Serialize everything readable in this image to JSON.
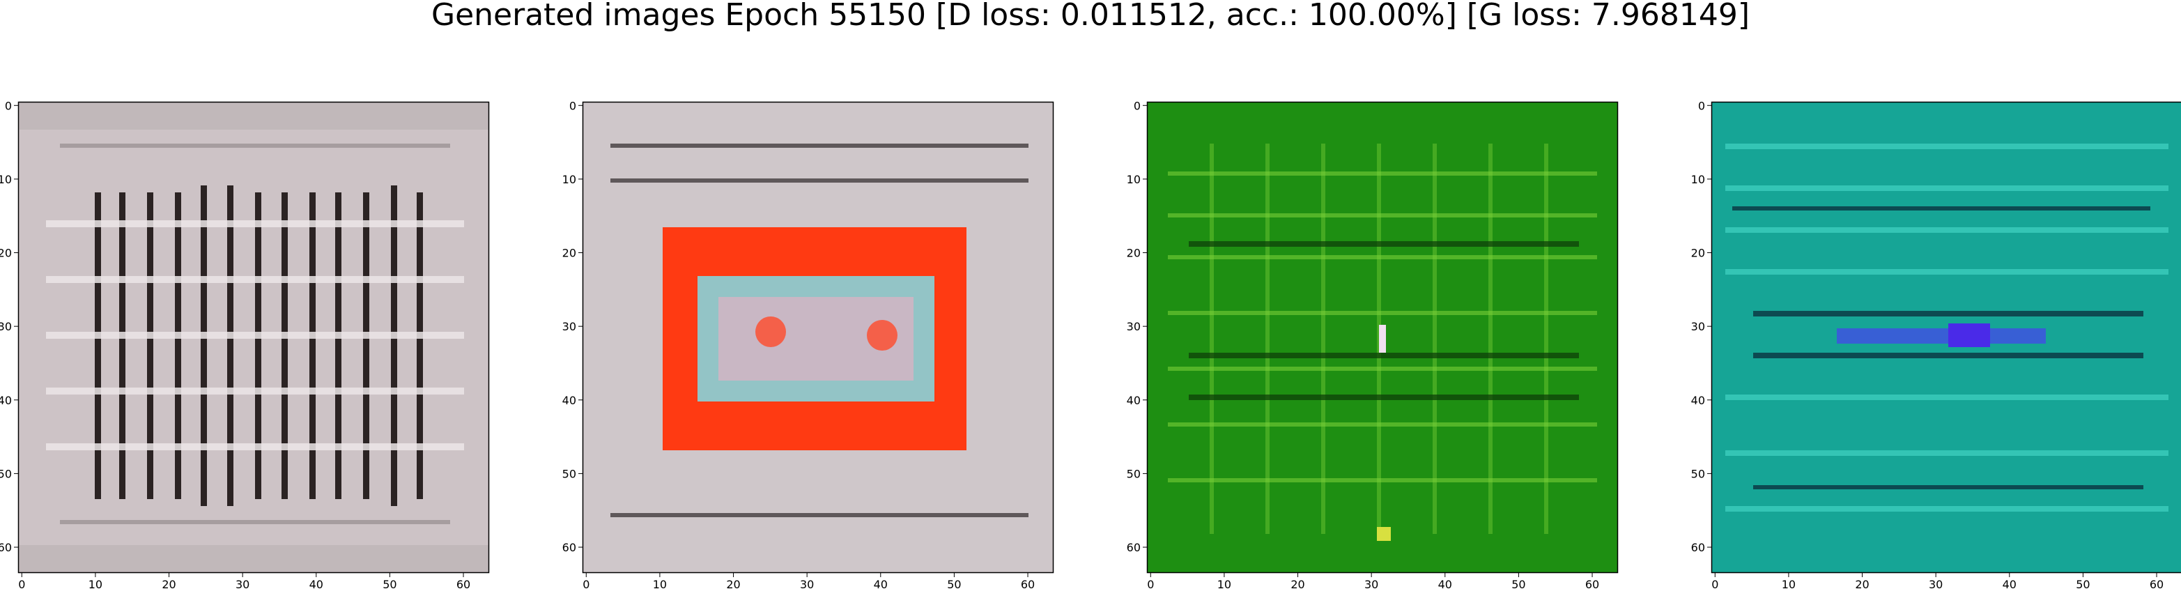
{
  "title": "Generated images Epoch 55150 [D loss: 0.011512, acc.: 100.00%] [G loss: 7.968149]",
  "axis": {
    "x_ticks": [
      "0",
      "10",
      "20",
      "30",
      "40",
      "50",
      "60"
    ],
    "y_ticks": [
      "0",
      "10",
      "20",
      "30",
      "40",
      "50",
      "60"
    ],
    "range": [
      0,
      63
    ]
  },
  "panels": [
    {
      "bg": "#c9bfc2",
      "lines": "#2a2424",
      "accent": "#e8e2e4"
    },
    {
      "bg": "#c9c3c6",
      "lines": "#3a3436",
      "accent": "#ff3a1a",
      "inner": "#8fc3c6"
    },
    {
      "bg": "#1f8f14",
      "lines": "#0b3a08",
      "accent": "#a8e84a"
    },
    {
      "bg": "#18a89a",
      "lines": "#0a3040",
      "accent": "#4a3ae8"
    }
  ]
}
